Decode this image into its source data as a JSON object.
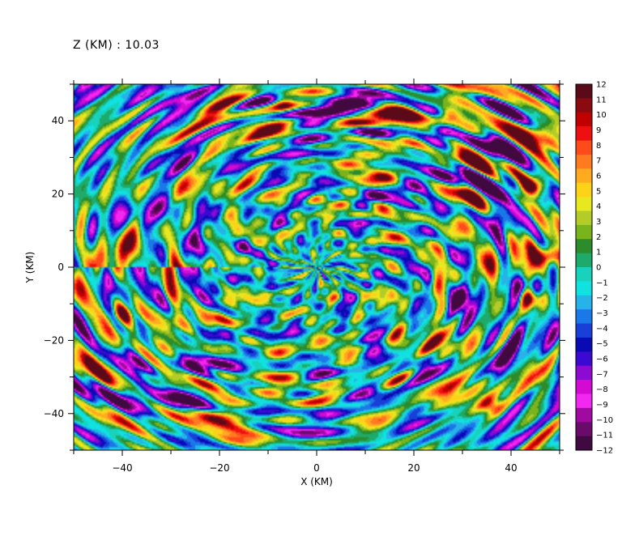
{
  "header": {
    "level_text": "Z (KM) : 10.03"
  },
  "chart_data": {
    "type": "heatmap",
    "title": "",
    "xlabel": "X (KM)",
    "ylabel": "Y (KM)",
    "xlim": [
      -50,
      50
    ],
    "ylim": [
      -50,
      50
    ],
    "x_ticks": [
      -40,
      -20,
      0,
      20,
      40
    ],
    "x_tick_labels": [
      "−40",
      "−20",
      "0",
      "20",
      "40"
    ],
    "y_ticks": [
      -40,
      -20,
      0,
      20,
      40
    ],
    "y_tick_labels": [
      "−40",
      "−20",
      "0",
      "20",
      "40"
    ],
    "grid": false,
    "colorbar": {
      "min": -12,
      "max": 12,
      "tick_values": [
        12,
        11,
        10,
        9,
        8,
        7,
        6,
        5,
        4,
        3,
        2,
        1,
        0,
        -1,
        -2,
        -3,
        -4,
        -5,
        -6,
        -7,
        -8,
        -9,
        -10,
        -11,
        -12
      ],
      "tick_labels": [
        "12",
        "11",
        "10",
        "9",
        "8",
        "7",
        "6",
        "5",
        "4",
        "3",
        "2",
        "1",
        "0",
        "−1",
        "−2",
        "−3",
        "−4",
        "−5",
        "−6",
        "−7",
        "−8",
        "−9",
        "−10",
        "−11",
        "−12"
      ],
      "colors": [
        "#5a0a18",
        "#8b0a10",
        "#c00000",
        "#ee1010",
        "#ff4a1a",
        "#ff7a20",
        "#ffaa20",
        "#ffd21a",
        "#e8e820",
        "#b4cc28",
        "#7ab41c",
        "#2c8c2c",
        "#1eaa6a",
        "#18d2bc",
        "#10e2e2",
        "#26b4e8",
        "#1a78e8",
        "#1840d8",
        "#0a0ab4",
        "#3a0ad2",
        "#8c0ad2",
        "#d20ad2",
        "#f228f2",
        "#a00aa0",
        "#6a0a6a",
        "#400a40"
      ]
    },
    "field_description_values": {
      "background_mean": -0.5,
      "notable_features": [
        {
          "x": -7,
          "y": 45,
          "value": 9
        },
        {
          "x": 27,
          "y": 41,
          "value": 10
        },
        {
          "x": 44,
          "y": 22,
          "value": 11
        },
        {
          "x": 48,
          "y": 3,
          "value": 11
        },
        {
          "x": 45,
          "y": -9,
          "value": 10
        },
        {
          "x": 26,
          "y": 37,
          "value": -9
        },
        {
          "x": 43,
          "y": -5,
          "value": -9
        },
        {
          "x": 36,
          "y": -38,
          "value": 8
        },
        {
          "x": -40,
          "y": -13,
          "value": 6
        }
      ]
    }
  }
}
